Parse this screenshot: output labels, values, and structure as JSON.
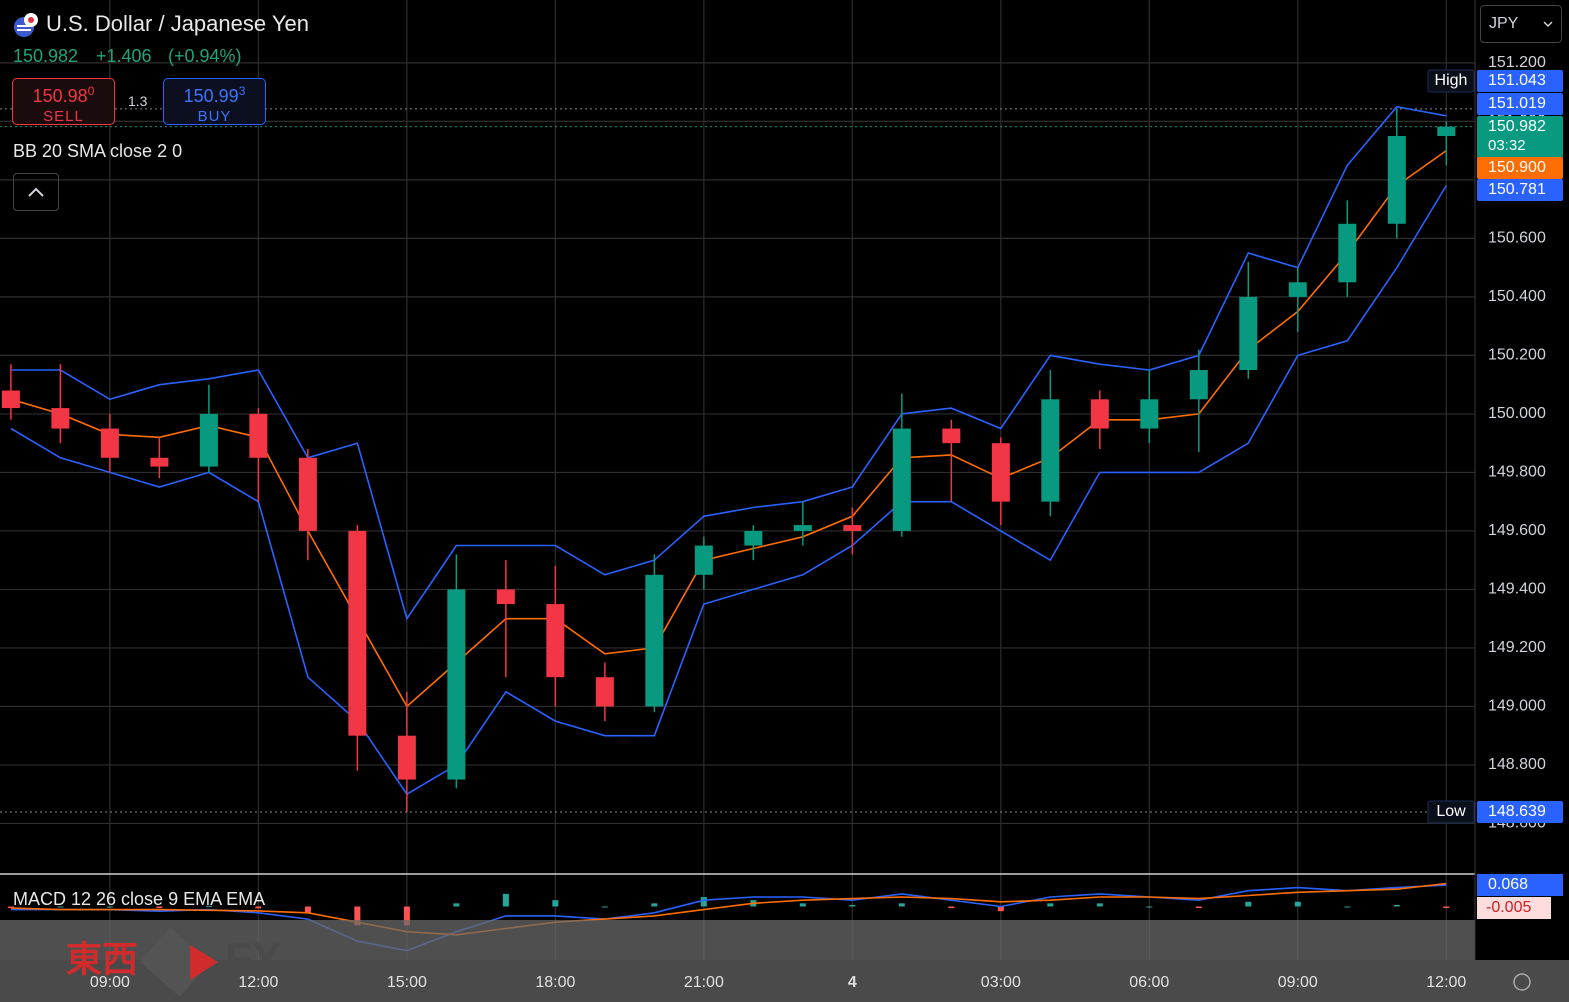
{
  "header": {
    "title": "U.S. Dollar / Japanese Yen",
    "last": 150.982,
    "change": "+1.406",
    "change_percent": "(+0.94%)",
    "sell": {
      "price": "150.98",
      "pip": "0",
      "label": "SELL"
    },
    "spread": "1.3",
    "buy": {
      "price": "150.99",
      "pip": "3",
      "label": "BUY"
    },
    "indicator": "BB 20 SMA close 2 0",
    "currency": "JPY",
    "watermark": [
      "東西",
      "FX"
    ]
  },
  "chart_data": [
    {
      "type": "candlestick",
      "x": [
        -2,
        -1,
        0,
        1,
        2,
        3,
        4,
        5,
        6,
        7,
        8,
        9,
        10,
        11,
        12,
        13,
        14,
        15,
        16,
        17,
        18,
        19,
        20,
        21,
        22,
        23,
        24,
        25,
        26,
        27
      ],
      "open": [
        150.08,
        150.02,
        149.95,
        149.85,
        149.82,
        150.0,
        149.85,
        149.6,
        148.9,
        148.75,
        149.4,
        149.35,
        149.1,
        149.0,
        149.45,
        149.55,
        149.6,
        149.62,
        149.6,
        149.95,
        149.9,
        149.7,
        150.05,
        149.95,
        150.05,
        150.15,
        150.4,
        150.45,
        150.65,
        150.95
      ],
      "high": [
        150.17,
        150.17,
        150.0,
        149.92,
        150.1,
        150.02,
        149.88,
        149.62,
        149.05,
        149.52,
        149.5,
        149.48,
        149.15,
        149.52,
        149.58,
        149.62,
        149.7,
        149.68,
        150.07,
        149.98,
        149.92,
        150.15,
        150.08,
        150.15,
        150.22,
        150.52,
        150.5,
        150.73,
        151.043,
        151.0
      ],
      "low": [
        149.98,
        149.9,
        149.8,
        149.78,
        149.8,
        149.7,
        149.5,
        148.78,
        148.639,
        148.72,
        149.1,
        149.0,
        148.95,
        148.98,
        149.4,
        149.5,
        149.55,
        149.52,
        149.58,
        149.7,
        149.62,
        149.65,
        149.88,
        149.9,
        149.87,
        150.12,
        150.28,
        150.4,
        150.6,
        150.85
      ],
      "close": [
        150.02,
        149.95,
        149.85,
        149.82,
        150.0,
        149.85,
        149.6,
        148.9,
        148.75,
        149.4,
        149.35,
        149.1,
        149.0,
        149.45,
        149.55,
        149.6,
        149.62,
        149.6,
        149.95,
        149.9,
        149.7,
        150.05,
        149.95,
        150.05,
        150.15,
        150.4,
        150.45,
        150.65,
        150.95,
        150.982
      ],
      "up_color": "#089981",
      "down_color": "#f23645",
      "bands": [
        {
          "color": "#2962ff",
          "values": [
            150.15,
            150.15,
            150.05,
            150.1,
            150.12,
            150.15,
            149.85,
            149.9,
            149.3,
            149.55,
            149.55,
            149.55,
            149.45,
            149.5,
            149.65,
            149.68,
            149.7,
            149.75,
            150.0,
            150.02,
            149.95,
            150.2,
            150.17,
            150.15,
            150.2,
            150.55,
            150.5,
            150.85,
            151.05,
            151.019
          ]
        },
        {
          "color": "#ff6d00",
          "values": [
            150.05,
            150.0,
            149.93,
            149.92,
            149.96,
            149.92,
            149.6,
            149.3,
            149.0,
            149.15,
            149.3,
            149.3,
            149.18,
            149.2,
            149.5,
            149.54,
            149.58,
            149.65,
            149.85,
            149.86,
            149.78,
            149.85,
            149.98,
            149.98,
            150.0,
            150.22,
            150.35,
            150.55,
            150.78,
            150.9
          ]
        },
        {
          "color": "#2962ff",
          "values": [
            149.95,
            149.85,
            149.8,
            149.75,
            149.8,
            149.7,
            149.1,
            148.95,
            148.7,
            148.8,
            149.05,
            148.95,
            148.9,
            148.9,
            149.35,
            149.4,
            149.45,
            149.55,
            149.7,
            149.7,
            149.6,
            149.5,
            149.8,
            149.8,
            149.8,
            149.9,
            150.2,
            150.25,
            150.5,
            150.781
          ]
        }
      ],
      "xlim": [
        -2.22,
        27.58
      ],
      "xticks": [
        {
          "value": 0,
          "label": "09:00"
        },
        {
          "value": 3,
          "label": "12:00"
        },
        {
          "value": 6,
          "label": "15:00"
        },
        {
          "value": 9,
          "label": "18:00"
        },
        {
          "value": 12,
          "label": "21:00"
        },
        {
          "value": 15,
          "label": "4"
        },
        {
          "value": 18,
          "label": "03:00"
        },
        {
          "value": 21,
          "label": "06:00"
        },
        {
          "value": 24,
          "label": "09:00"
        },
        {
          "value": 27,
          "label": "12:00"
        }
      ],
      "ylim": [
        148.434,
        151.415
      ],
      "yticks": [
        {
          "value": 148.6,
          "label": "148.600"
        },
        {
          "value": 148.8,
          "label": "148.800"
        },
        {
          "value": 149,
          "label": "149.000"
        },
        {
          "value": 149.2,
          "label": "149.200"
        },
        {
          "value": 149.4,
          "label": "149.400"
        },
        {
          "value": 149.6,
          "label": "149.600"
        },
        {
          "value": 149.8,
          "label": "149.800"
        },
        {
          "value": 150,
          "label": "150.000"
        },
        {
          "value": 150.2,
          "label": "150.200"
        },
        {
          "value": 150.4,
          "label": "150.400"
        },
        {
          "value": 150.6,
          "label": "150.600"
        },
        {
          "value": 150.8,
          "label": "150.800"
        },
        {
          "value": 151,
          "label": "151.000"
        },
        {
          "value": 151.2,
          "label": "151.200"
        }
      ],
      "grid": true,
      "price_labels": [
        {
          "text": "High",
          "value": 151.043,
          "color": "#2962ff",
          "line": true
        },
        {
          "value": 151.019,
          "color": "#2962ff"
        },
        {
          "value": 150.982,
          "sub": "03:32",
          "color": "#089981",
          "line": true
        },
        {
          "value": 150.9,
          "label": "150.900",
          "color": "#ff6d00"
        },
        {
          "value": 150.781,
          "color": "#2962ff"
        },
        {
          "text": "Low",
          "value": 148.639,
          "color": "#2962ff",
          "line": true
        }
      ]
    },
    {
      "type": "macd",
      "title": "MACD 12 26 close 9 EMA EMA",
      "x": [
        -2,
        -1,
        0,
        1,
        2,
        3,
        4,
        5,
        6,
        7,
        8,
        9,
        10,
        11,
        12,
        13,
        14,
        15,
        16,
        17,
        18,
        19,
        20,
        21,
        22,
        23,
        24,
        25,
        26,
        27
      ],
      "series": [
        {
          "color": "#2962ff",
          "values": [
            -0.01,
            -0.01,
            -0.01,
            -0.015,
            -0.01,
            -0.02,
            -0.04,
            -0.11,
            -0.14,
            -0.08,
            -0.03,
            -0.03,
            -0.04,
            -0.02,
            0.02,
            0.03,
            0.03,
            0.02,
            0.04,
            0.02,
            0.0,
            0.03,
            0.04,
            0.03,
            0.02,
            0.05,
            0.06,
            0.05,
            0.06,
            0.068
          ]
        },
        {
          "color": "#ff6d00",
          "values": [
            -0.005,
            -0.01,
            -0.01,
            -0.01,
            -0.012,
            -0.014,
            -0.02,
            -0.05,
            -0.08,
            -0.09,
            -0.07,
            -0.05,
            -0.04,
            -0.03,
            -0.01,
            0.01,
            0.02,
            0.025,
            0.03,
            0.025,
            0.015,
            0.02,
            0.03,
            0.03,
            0.025,
            0.035,
            0.045,
            0.05,
            0.055,
            0.073
          ]
        }
      ],
      "histogram": {
        "up_color": "#26a69a",
        "down_color": "#ff5252",
        "values": [
          -0.005,
          0,
          0,
          -0.005,
          0.002,
          -0.006,
          -0.02,
          -0.06,
          -0.06,
          0.01,
          0.04,
          0.02,
          0.0,
          0.01,
          0.03,
          0.02,
          0.01,
          0.005,
          0.01,
          -0.005,
          -0.015,
          0.01,
          0.01,
          0,
          -0.005,
          0.015,
          0.015,
          0,
          0.005,
          -0.005
        ]
      },
      "ylim": [
        -0.17,
        0.1
      ]
    }
  ]
}
